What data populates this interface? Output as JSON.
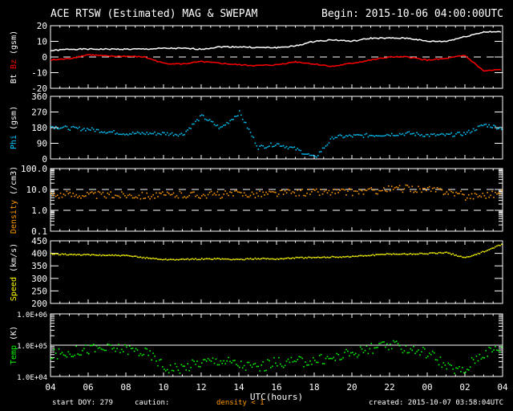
{
  "header": {
    "title": "ACE RTSW (Estimated) MAG & SWEPAM",
    "begin": "Begin: 2015-10-06 04:00:00UTC"
  },
  "footer": {
    "start_doy": "start DOY: 279",
    "caution": "caution:",
    "caution_note": "density < 1",
    "created": "created: 2015-10-07 03:58:04UTC"
  },
  "colors": {
    "bt": "#ffffff",
    "bz": "#ff0000",
    "phi": "#00c8ff",
    "density": "#ff9900",
    "speed": "#ffff00",
    "temp": "#00ff00",
    "caution": "#ff9900"
  },
  "chart_data": [
    {
      "type": "line",
      "title": "Bt / Bz",
      "ylabel_parts": [
        {
          "text": "Bt",
          "color": "#ffffff"
        },
        {
          "text": "Bz",
          "color": "#ff0000"
        },
        {
          "text": "(gsm)",
          "color": "#ffffff"
        }
      ],
      "scale": "linear",
      "ylim": [
        -20,
        20
      ],
      "yticks": [
        {
          "v": 20,
          "label": "20"
        },
        {
          "v": 10,
          "label": "10"
        },
        {
          "v": 0,
          "label": "0"
        },
        {
          "v": -10,
          "label": "-10"
        },
        {
          "v": -20,
          "label": "-20"
        }
      ],
      "dashed_lines": [
        0
      ],
      "series": [
        {
          "name": "Bt",
          "color": "#ffffff",
          "values": [
            4,
            5,
            5,
            5,
            5,
            5,
            5.5,
            5.5,
            5,
            6.5,
            6.5,
            6,
            6,
            7,
            10,
            11,
            10,
            12,
            12,
            12,
            10,
            10,
            13,
            16,
            16
          ]
        },
        {
          "name": "Bz",
          "color": "#ff0000",
          "values": [
            -2,
            -1,
            1.5,
            0.5,
            0.5,
            0,
            -4,
            -4.5,
            -3,
            -4,
            -5,
            -5.5,
            -5,
            -3,
            -4.5,
            -6,
            -4,
            -2,
            0,
            0,
            -2,
            -1,
            1,
            -9,
            -8
          ]
        }
      ]
    },
    {
      "type": "scatter",
      "title": "Phi",
      "ylabel_parts": [
        {
          "text": "Phi",
          "color": "#00c8ff"
        },
        {
          "text": "(gsm)",
          "color": "#ffffff"
        }
      ],
      "scale": "linear",
      "ylim": [
        0,
        360
      ],
      "yticks": [
        {
          "v": 360,
          "label": "360"
        },
        {
          "v": 270,
          "label": "270"
        },
        {
          "v": 180,
          "label": "180"
        },
        {
          "v": 90,
          "label": "90"
        },
        {
          "v": 0,
          "label": "0"
        }
      ],
      "dashed_lines": [],
      "series": [
        {
          "name": "Phi",
          "color": "#00c8ff",
          "values": [
            190,
            180,
            175,
            160,
            150,
            150,
            150,
            145,
            250,
            180,
            270,
            70,
            90,
            60,
            10,
            130,
            135,
            140,
            145,
            150,
            140,
            140,
            150,
            200,
            180
          ]
        }
      ]
    },
    {
      "type": "scatter",
      "title": "Density",
      "ylabel_parts": [
        {
          "text": "Density",
          "color": "#ff9900"
        },
        {
          "text": "(/cm3)",
          "color": "#ffffff"
        }
      ],
      "scale": "log",
      "ylim": [
        0.1,
        100
      ],
      "yticks": [
        {
          "v": 100,
          "label": "100.0"
        },
        {
          "v": 10,
          "label": "10.0"
        },
        {
          "v": 1,
          "label": "1.0"
        },
        {
          "v": 0.1,
          "label": "0.1"
        }
      ],
      "dashed_lines": [
        10,
        1
      ],
      "series": [
        {
          "name": "Density",
          "color": "#ff9900",
          "values": [
            6,
            6,
            6,
            5.5,
            6,
            5.5,
            5.5,
            6,
            6,
            6,
            6.5,
            6.5,
            7,
            7.5,
            8,
            8,
            8,
            9,
            11,
            12,
            10,
            9,
            5,
            6,
            7
          ]
        }
      ]
    },
    {
      "type": "scatter",
      "title": "Speed",
      "ylabel_parts": [
        {
          "text": "Speed",
          "color": "#ffff00"
        },
        {
          "text": "(km/s)",
          "color": "#ffffff"
        }
      ],
      "scale": "linear",
      "ylim": [
        200,
        450
      ],
      "yticks": [
        {
          "v": 450,
          "label": "450"
        },
        {
          "v": 400,
          "label": "400"
        },
        {
          "v": 350,
          "label": "350"
        },
        {
          "v": 300,
          "label": "300"
        },
        {
          "v": 250,
          "label": "250"
        },
        {
          "v": 200,
          "label": "200"
        }
      ],
      "dashed_lines": [],
      "series": [
        {
          "name": "Speed",
          "color": "#ffff00",
          "values": [
            400,
            398,
            396,
            395,
            393,
            385,
            378,
            378,
            380,
            380,
            378,
            382,
            380,
            385,
            385,
            388,
            390,
            395,
            400,
            400,
            402,
            405,
            385,
            410,
            440
          ]
        }
      ]
    },
    {
      "type": "scatter",
      "title": "Temp",
      "ylabel_parts": [
        {
          "text": "Temp",
          "color": "#00ff00"
        },
        {
          "text": "(K)",
          "color": "#ffffff"
        }
      ],
      "scale": "log",
      "ylim": [
        10000,
        1000000
      ],
      "yticks": [
        {
          "v": 1000000,
          "label": "1.0E+06"
        },
        {
          "v": 100000,
          "label": "1.0E+05"
        },
        {
          "v": 10000,
          "label": "1.0E+04"
        }
      ],
      "dashed_lines": [],
      "solid_lines": [
        100000
      ],
      "series": [
        {
          "name": "Temp",
          "color": "#00ff00",
          "values": [
            50000,
            60000,
            80000,
            80000,
            80000,
            60000,
            20000,
            20000,
            30000,
            35000,
            25000,
            20000,
            30000,
            30000,
            35000,
            40000,
            60000,
            80000,
            100000,
            80000,
            60000,
            20000,
            15000,
            60000,
            90000
          ]
        }
      ]
    }
  ],
  "x_axis": {
    "label": "UTC(hours)",
    "hours": [
      0,
      24
    ],
    "ticks": [
      "04",
      "06",
      "08",
      "10",
      "12",
      "14",
      "16",
      "18",
      "20",
      "22",
      "00",
      "02",
      "04"
    ]
  }
}
